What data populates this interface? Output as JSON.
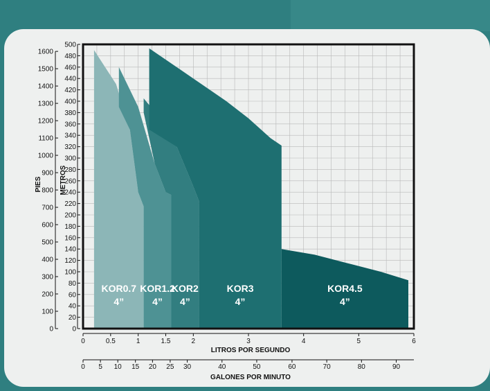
{
  "colors": {
    "background": "#2f7f80",
    "panel": "#eef0ef",
    "grid": "#b8b8b8",
    "frame": "#111111"
  },
  "chart_data": {
    "type": "area",
    "title": "",
    "y_left_outer": {
      "label": "PIES",
      "ticks": [
        0,
        100,
        200,
        300,
        400,
        500,
        600,
        700,
        800,
        900,
        1000,
        1100,
        1200,
        1300,
        1400,
        1500,
        1600
      ]
    },
    "y_left_inner": {
      "label": "METROS",
      "ylim": [
        0,
        500
      ],
      "ticks": [
        0,
        20,
        40,
        60,
        80,
        100,
        120,
        140,
        160,
        180,
        200,
        220,
        240,
        260,
        280,
        300,
        320,
        340,
        360,
        380,
        400,
        420,
        440,
        460,
        480,
        500
      ]
    },
    "x_primary": {
      "label": "LITROS POR SEGUNDO",
      "xlim": [
        0,
        6
      ],
      "ticks": [
        {
          "value": 0,
          "label": "0"
        },
        {
          "value": 0.5,
          "label": "0.5"
        },
        {
          "value": 1,
          "label": "1"
        },
        {
          "value": 1.5,
          "label": "1.5"
        },
        {
          "value": 2,
          "label": "2"
        },
        {
          "value": 3,
          "label": "3"
        },
        {
          "value": 4,
          "label": "4"
        },
        {
          "value": 5,
          "label": "5"
        },
        {
          "value": 6,
          "label": "6"
        }
      ]
    },
    "x_secondary": {
      "label": "GALONES POR MINUTO",
      "ticks": [
        {
          "label": "0",
          "lps": 0
        },
        {
          "label": "5",
          "lps": 0.315
        },
        {
          "label": "10",
          "lps": 0.63
        },
        {
          "label": "15",
          "lps": 0.95
        },
        {
          "label": "20",
          "lps": 1.26
        },
        {
          "label": "25",
          "lps": 1.58
        },
        {
          "label": "30",
          "lps": 1.89
        },
        {
          "label": "40",
          "lps": 2.52
        },
        {
          "label": "50",
          "lps": 3.15
        },
        {
          "label": "60",
          "lps": 3.79
        },
        {
          "label": "70",
          "lps": 4.42
        },
        {
          "label": "80",
          "lps": 5.05
        },
        {
          "label": "90",
          "lps": 5.68
        }
      ]
    },
    "grid": true,
    "series": [
      {
        "name": "KOR0.7",
        "size": "4”",
        "color": "#8cb6b7",
        "points": [
          [
            0.2,
            490
          ],
          [
            0.6,
            430
          ],
          [
            0.85,
            350
          ],
          [
            1.0,
            240
          ],
          [
            1.1,
            215
          ],
          [
            1.1,
            0
          ],
          [
            0.2,
            0
          ]
        ]
      },
      {
        "name": "KOR1.2",
        "size": "4”",
        "color": "#4e9294",
        "points": [
          [
            0.65,
            460
          ],
          [
            1.0,
            390
          ],
          [
            1.3,
            290
          ],
          [
            1.5,
            240
          ],
          [
            1.6,
            235
          ],
          [
            1.6,
            0
          ],
          [
            1.1,
            0
          ],
          [
            1.1,
            215
          ],
          [
            1.0,
            240
          ],
          [
            0.85,
            350
          ],
          [
            0.65,
            390
          ]
        ]
      },
      {
        "name": "KOR2",
        "size": "4”",
        "color": "#327e80",
        "points": [
          [
            1.1,
            405
          ],
          [
            1.4,
            370
          ],
          [
            1.7,
            320
          ],
          [
            2.0,
            250
          ],
          [
            2.1,
            225
          ],
          [
            2.1,
            0
          ],
          [
            1.6,
            0
          ],
          [
            1.6,
            235
          ],
          [
            1.5,
            240
          ],
          [
            1.3,
            290
          ],
          [
            1.1,
            380
          ]
        ]
      },
      {
        "name": "KOR3",
        "size": "4”",
        "color": "#1e6f71",
        "points": [
          [
            1.2,
            493
          ],
          [
            2.0,
            440
          ],
          [
            2.6,
            400
          ],
          [
            3.0,
            370
          ],
          [
            3.4,
            335
          ],
          [
            3.6,
            322
          ],
          [
            3.6,
            0
          ],
          [
            2.1,
            0
          ],
          [
            2.1,
            225
          ],
          [
            2.0,
            250
          ],
          [
            1.7,
            320
          ],
          [
            1.2,
            350
          ]
        ]
      },
      {
        "name": "KOR4.5",
        "size": "4”",
        "color": "#0d5a5d",
        "points": [
          [
            3.6,
            140
          ],
          [
            4.2,
            130
          ],
          [
            4.8,
            115
          ],
          [
            5.4,
            100
          ],
          [
            5.9,
            85
          ],
          [
            5.9,
            0
          ],
          [
            3.6,
            0
          ]
        ]
      }
    ]
  }
}
